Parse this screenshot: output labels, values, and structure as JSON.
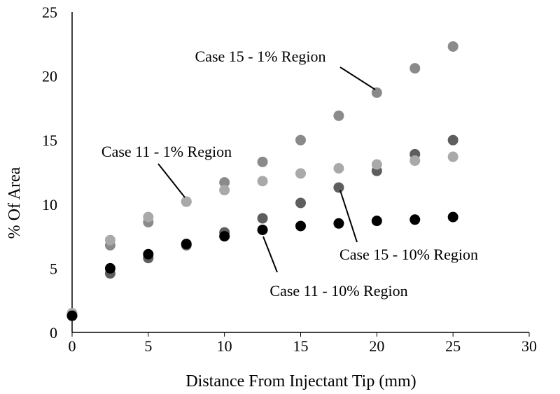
{
  "chart_data": {
    "type": "scatter",
    "title": "",
    "xlabel": "Distance From Injectant Tip (mm)",
    "ylabel": "% Of Area",
    "xlim": [
      0,
      30
    ],
    "ylim": [
      0,
      25
    ],
    "xticks": [
      "0",
      "5",
      "10",
      "15",
      "20",
      "25",
      "30"
    ],
    "yticks": [
      "0",
      "5",
      "10",
      "15",
      "20",
      "25"
    ],
    "grid": false,
    "legend": "none",
    "series": [
      {
        "color": "#8a8a8a",
        "x": [
          0,
          2.5,
          5,
          7.5,
          10,
          12.5,
          15,
          17.5,
          20,
          22.5,
          25
        ],
        "y": [
          1.3,
          6.8,
          8.6,
          10.2,
          11.7,
          13.3,
          15.0,
          16.9,
          18.7,
          20.6,
          22.3
        ]
      },
      {
        "color": "#5e5e5e",
        "x": [
          0,
          2.5,
          5,
          7.5,
          10,
          12.5,
          15,
          17.5,
          20,
          22.5,
          25
        ],
        "y": [
          1.3,
          4.6,
          5.8,
          6.8,
          7.8,
          8.9,
          10.1,
          11.3,
          12.6,
          13.9,
          15.0
        ]
      },
      {
        "color": "#a9a9a9",
        "x": [
          0,
          2.5,
          5,
          7.5,
          10,
          12.5,
          15,
          17.5,
          20,
          22.5,
          25
        ],
        "y": [
          1.5,
          7.2,
          9.0,
          10.2,
          11.1,
          11.8,
          12.4,
          12.8,
          13.1,
          13.4,
          13.7
        ]
      },
      {
        "color": "#000000",
        "x": [
          0,
          2.5,
          5,
          7.5,
          10,
          12.5,
          15,
          17.5,
          20,
          22.5,
          25
        ],
        "y": [
          1.3,
          5.0,
          6.1,
          6.9,
          7.5,
          8.0,
          8.3,
          8.5,
          8.7,
          8.8,
          9.0
        ]
      }
    ],
    "annotations": [
      {
        "text": "Case 15 - 1% Region",
        "x": 20,
        "y": 18.7
      },
      {
        "text": "Case 11 - 1% Region",
        "x": 7.5,
        "y": 10.2
      },
      {
        "text": "Case 15 - 10% Region",
        "x": 17.5,
        "y": 11.3
      },
      {
        "text": "Case 11 - 10% Region",
        "x": 12.5,
        "y": 8.0
      }
    ]
  }
}
